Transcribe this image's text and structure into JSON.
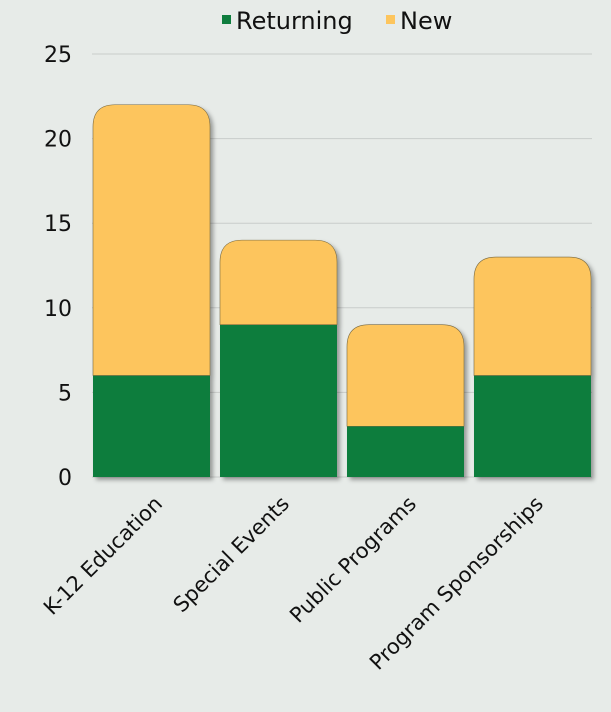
{
  "chart_data": {
    "type": "bar",
    "stacked": true,
    "categories": [
      "K-12 Education",
      "Special Events",
      "Public Programs",
      "Program Sponsorships"
    ],
    "series": [
      {
        "name": "Returning",
        "values": [
          6,
          9,
          3,
          6
        ],
        "color": "#0f7d3e"
      },
      {
        "name": "New",
        "values": [
          16,
          5,
          6,
          7
        ],
        "color": "#fdc55d"
      }
    ],
    "y_ticks": [
      0,
      5,
      10,
      15,
      20,
      25
    ],
    "ylim": [
      0,
      25
    ],
    "grid": true,
    "legend_position": "top"
  }
}
